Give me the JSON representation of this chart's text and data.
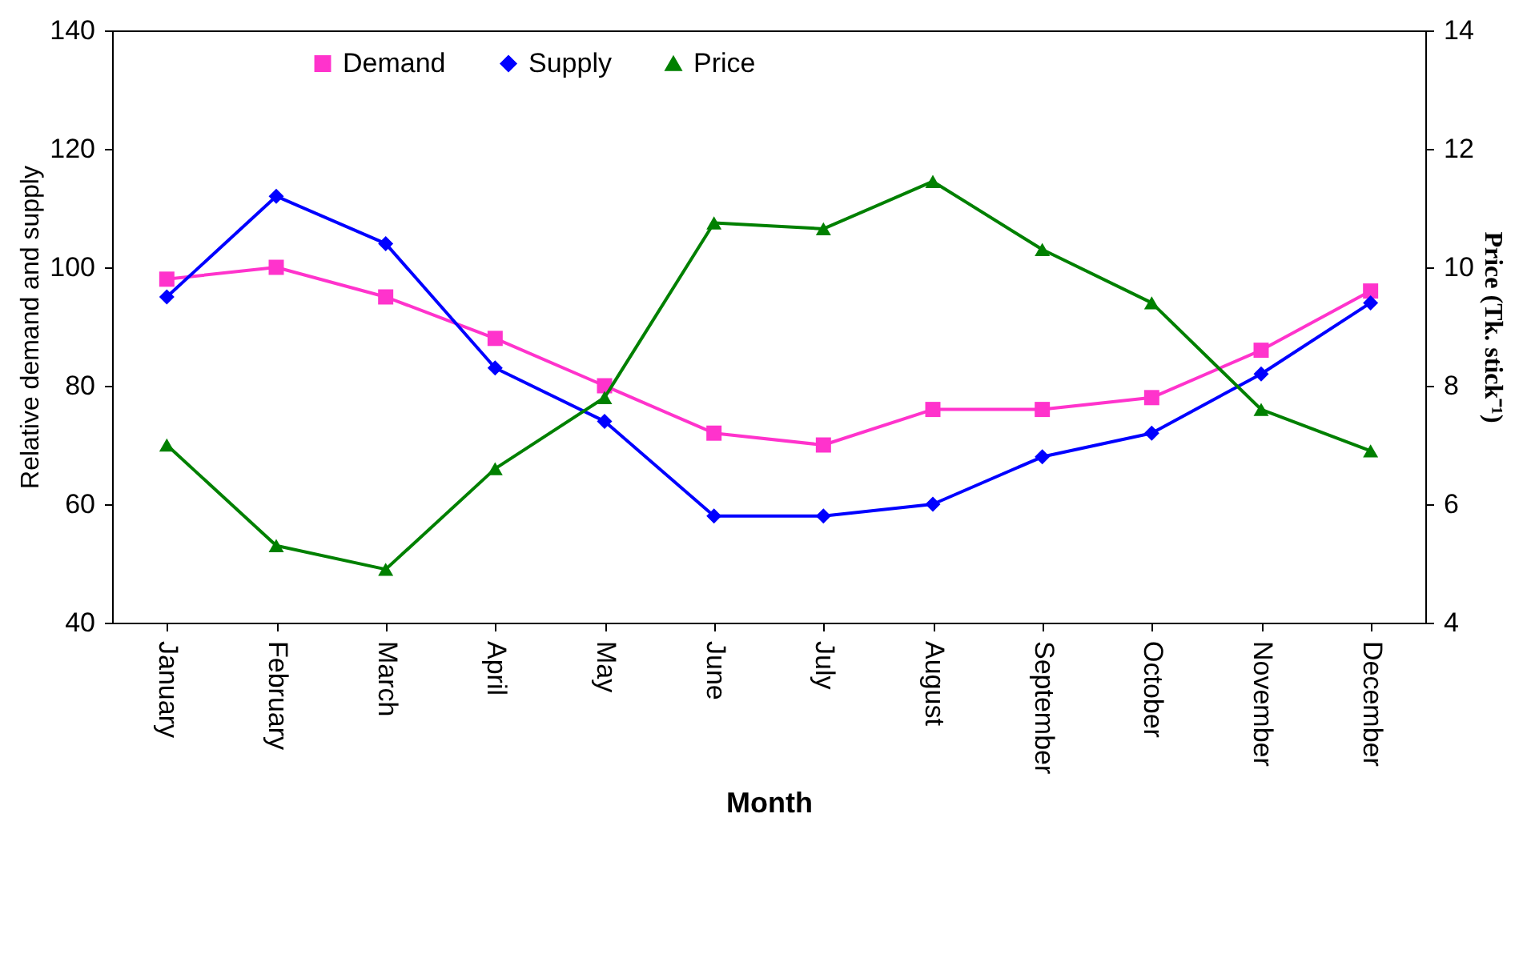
{
  "chart_data": {
    "type": "line",
    "xlabel": "Month",
    "ylabel": "Relative demand and supply",
    "y2label": "Price (Tk. stick⁻¹)",
    "categories": [
      "January",
      "February",
      "March",
      "April",
      "May",
      "June",
      "July",
      "August",
      "September",
      "October",
      "November",
      "December"
    ],
    "series": [
      {
        "name": "Demand",
        "color": "#ff33cc",
        "marker": "square",
        "values": [
          98,
          100,
          95,
          88,
          80,
          72,
          70,
          76,
          76,
          78,
          86,
          96
        ]
      },
      {
        "name": "Supply",
        "color": "#0000ff",
        "marker": "diamond",
        "values": [
          95,
          112,
          104,
          83,
          74,
          58,
          58,
          60,
          68,
          72,
          82,
          94
        ]
      },
      {
        "name": "Price",
        "color": "#008000",
        "marker": "triangle",
        "axis": "y2",
        "values": [
          7.0,
          5.3,
          4.9,
          6.6,
          7.8,
          10.75,
          10.65,
          11.45,
          10.3,
          9.4,
          7.6,
          6.9
        ]
      }
    ],
    "ylim": [
      40,
      140
    ],
    "yticks": [
      40,
      60,
      80,
      100,
      120,
      140
    ],
    "y2lim": [
      4,
      14
    ],
    "y2ticks": [
      4,
      6,
      8,
      10,
      12,
      14
    ],
    "legend": "top",
    "grid": false,
    "line_style": "solid"
  }
}
